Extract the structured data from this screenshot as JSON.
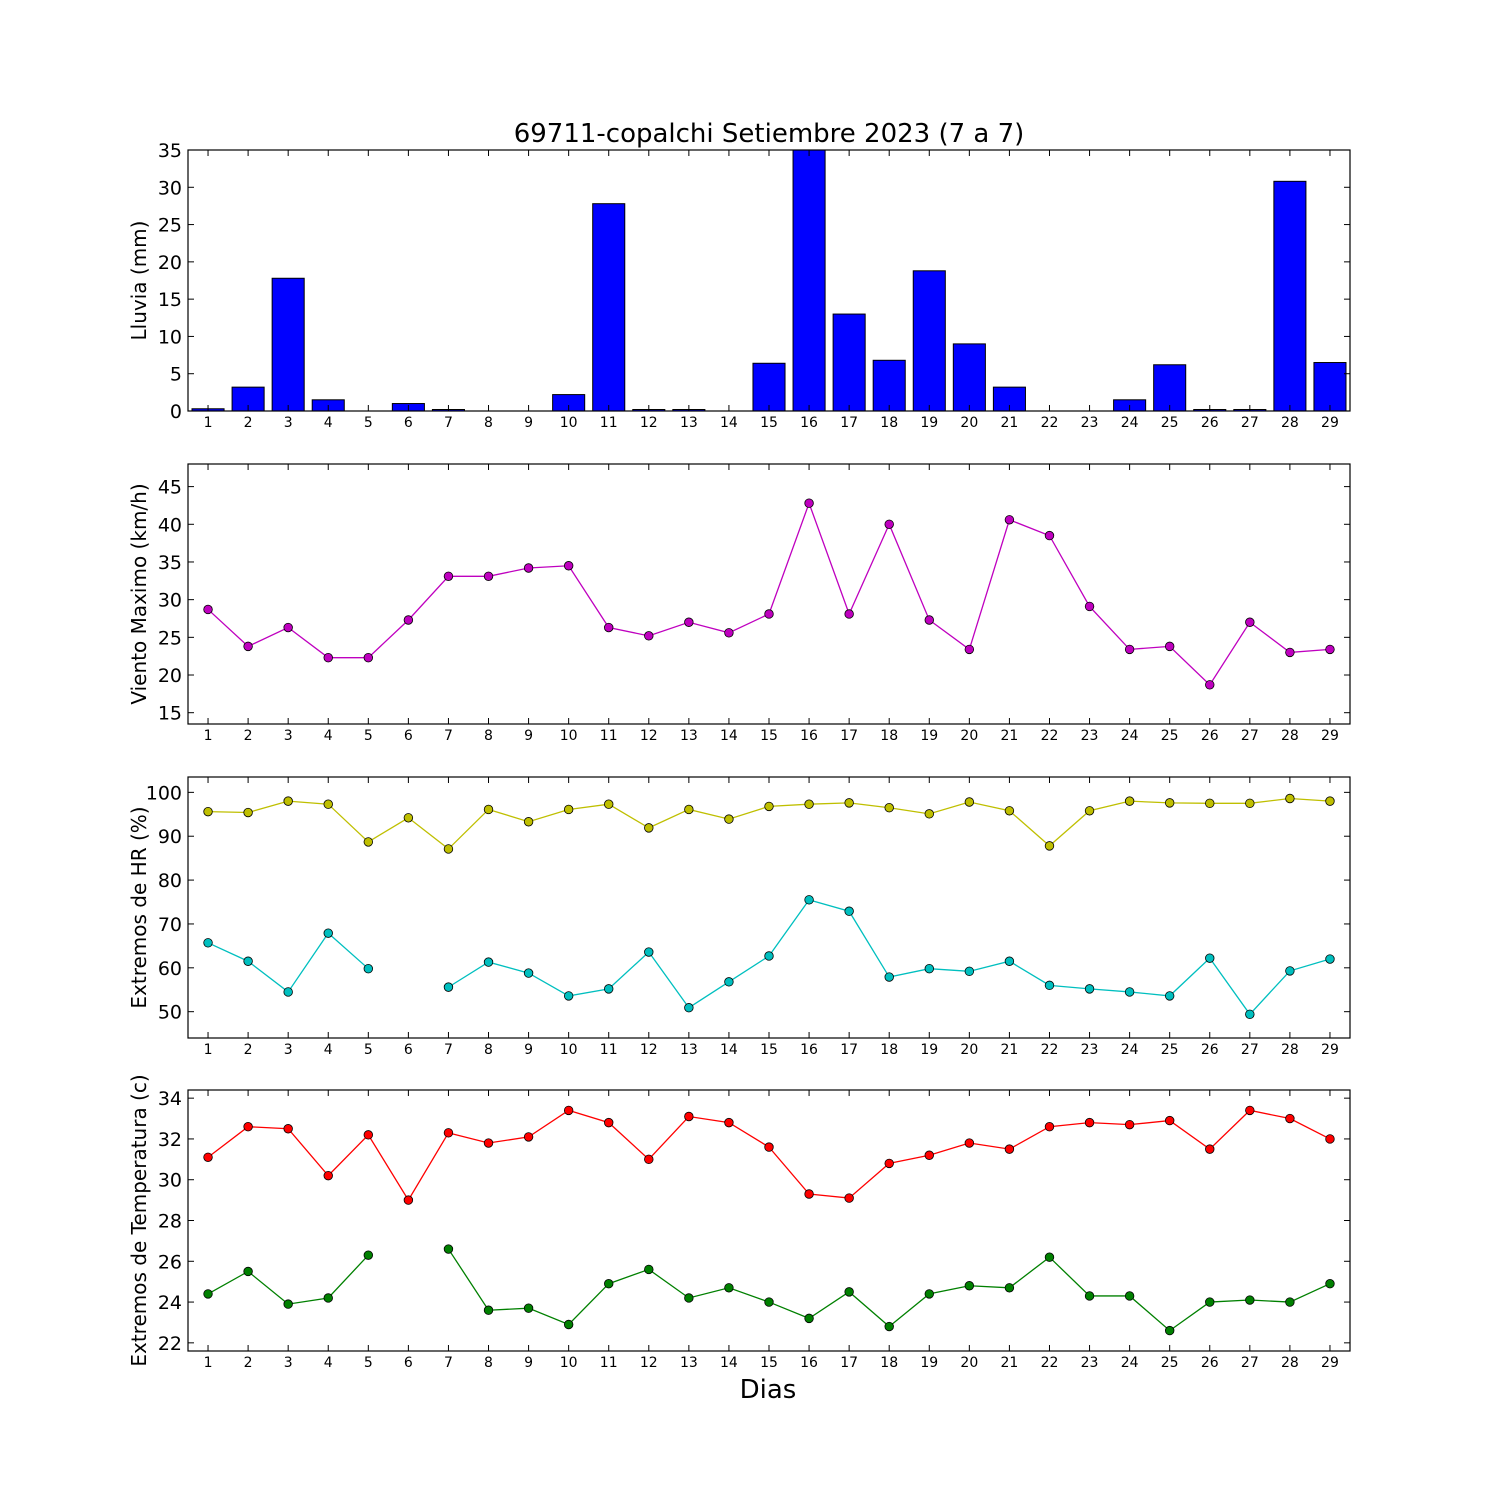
{
  "chart_data": [
    {
      "type": "bar",
      "title": "69711-copalchi Setiembre 2023  (7 a 7)",
      "ylabel": "Lluvia (mm)",
      "xlabel": "",
      "x": [
        1,
        2,
        3,
        4,
        5,
        6,
        7,
        8,
        9,
        10,
        11,
        12,
        13,
        14,
        15,
        16,
        17,
        18,
        19,
        20,
        21,
        22,
        23,
        24,
        25,
        26,
        27,
        28,
        29
      ],
      "ylim": [
        0,
        35
      ],
      "yticks": [
        0,
        5,
        10,
        15,
        20,
        25,
        30,
        35
      ],
      "series": [
        {
          "color": "#0000ff",
          "values": [
            0.3,
            3.2,
            17.8,
            1.5,
            0,
            1.0,
            0.2,
            0,
            0,
            2.2,
            27.8,
            0.2,
            0.2,
            0,
            6.4,
            35.0,
            13.0,
            6.8,
            18.8,
            9.0,
            3.2,
            0,
            0,
            1.5,
            6.2,
            0.2,
            0.2,
            30.8,
            6.5
          ]
        }
      ]
    },
    {
      "type": "line",
      "title": "",
      "ylabel": "Viento Maximo (km/h)",
      "xlabel": "",
      "x": [
        1,
        2,
        3,
        4,
        5,
        6,
        7,
        8,
        9,
        10,
        11,
        12,
        13,
        14,
        15,
        16,
        17,
        18,
        19,
        20,
        21,
        22,
        23,
        24,
        25,
        26,
        27,
        28,
        29
      ],
      "ylim": [
        13.5,
        48
      ],
      "yticks": [
        15,
        20,
        25,
        30,
        35,
        40,
        45
      ],
      "series": [
        {
          "color": "#bf00bf",
          "values": [
            28.7,
            23.8,
            26.3,
            22.3,
            22.3,
            27.3,
            33.1,
            33.1,
            34.2,
            34.5,
            26.3,
            25.2,
            27.0,
            25.6,
            28.1,
            42.8,
            28.1,
            40.0,
            27.3,
            23.4,
            40.6,
            38.5,
            29.1,
            23.4,
            23.8,
            18.7,
            27.0,
            23.0,
            23.4
          ]
        }
      ]
    },
    {
      "type": "line",
      "title": "",
      "ylabel": "Extremos de HR (%)",
      "xlabel": "",
      "x": [
        1,
        2,
        3,
        4,
        5,
        6,
        7,
        8,
        9,
        10,
        11,
        12,
        13,
        14,
        15,
        16,
        17,
        18,
        19,
        20,
        21,
        22,
        23,
        24,
        25,
        26,
        27,
        28,
        29
      ],
      "ylim": [
        44,
        103.5
      ],
      "yticks": [
        50,
        60,
        70,
        80,
        90,
        100
      ],
      "series": [
        {
          "color": "#bfbf00",
          "values": [
            95.6,
            95.4,
            98.0,
            97.3,
            88.7,
            94.2,
            87.1,
            96.1,
            93.3,
            96.1,
            97.3,
            91.9,
            96.1,
            93.9,
            96.8,
            97.3,
            97.6,
            96.5,
            95.1,
            97.8,
            95.8,
            87.8,
            95.8,
            98.0,
            97.6,
            97.5,
            97.5,
            98.6,
            98.0
          ]
        },
        {
          "color": "#00bfbf",
          "values": [
            65.7,
            61.5,
            54.5,
            67.9,
            59.8,
            null,
            55.6,
            61.3,
            58.8,
            53.6,
            55.2,
            63.6,
            50.9,
            56.8,
            62.7,
            75.5,
            72.9,
            57.9,
            59.8,
            59.2,
            61.5,
            56.0,
            55.2,
            54.5,
            53.6,
            62.2,
            49.4,
            59.3,
            62.0
          ]
        }
      ]
    },
    {
      "type": "line",
      "title": "",
      "ylabel": "Extremos de Temperatura (c)",
      "xlabel": "Dias",
      "x": [
        1,
        2,
        3,
        4,
        5,
        6,
        7,
        8,
        9,
        10,
        11,
        12,
        13,
        14,
        15,
        16,
        17,
        18,
        19,
        20,
        21,
        22,
        23,
        24,
        25,
        26,
        27,
        28,
        29
      ],
      "ylim": [
        21.6,
        34.4
      ],
      "yticks": [
        22,
        24,
        26,
        28,
        30,
        32,
        34
      ],
      "series": [
        {
          "color": "#ff0000",
          "values": [
            31.1,
            32.6,
            32.5,
            30.2,
            32.2,
            29.0,
            32.3,
            31.8,
            32.1,
            33.4,
            32.8,
            31.0,
            33.1,
            32.8,
            31.6,
            29.3,
            29.1,
            30.8,
            31.2,
            31.8,
            31.5,
            32.6,
            32.8,
            32.7,
            32.9,
            31.5,
            33.4,
            33.0,
            32.0
          ]
        },
        {
          "color": "#008000",
          "values": [
            24.4,
            25.5,
            23.9,
            24.2,
            26.3,
            null,
            26.6,
            23.6,
            23.7,
            22.9,
            24.9,
            25.6,
            24.2,
            24.7,
            24.0,
            23.2,
            24.5,
            22.8,
            24.4,
            24.8,
            24.7,
            26.2,
            24.3,
            24.3,
            22.6,
            24.0,
            24.1,
            24.0,
            24.9
          ]
        }
      ]
    }
  ]
}
